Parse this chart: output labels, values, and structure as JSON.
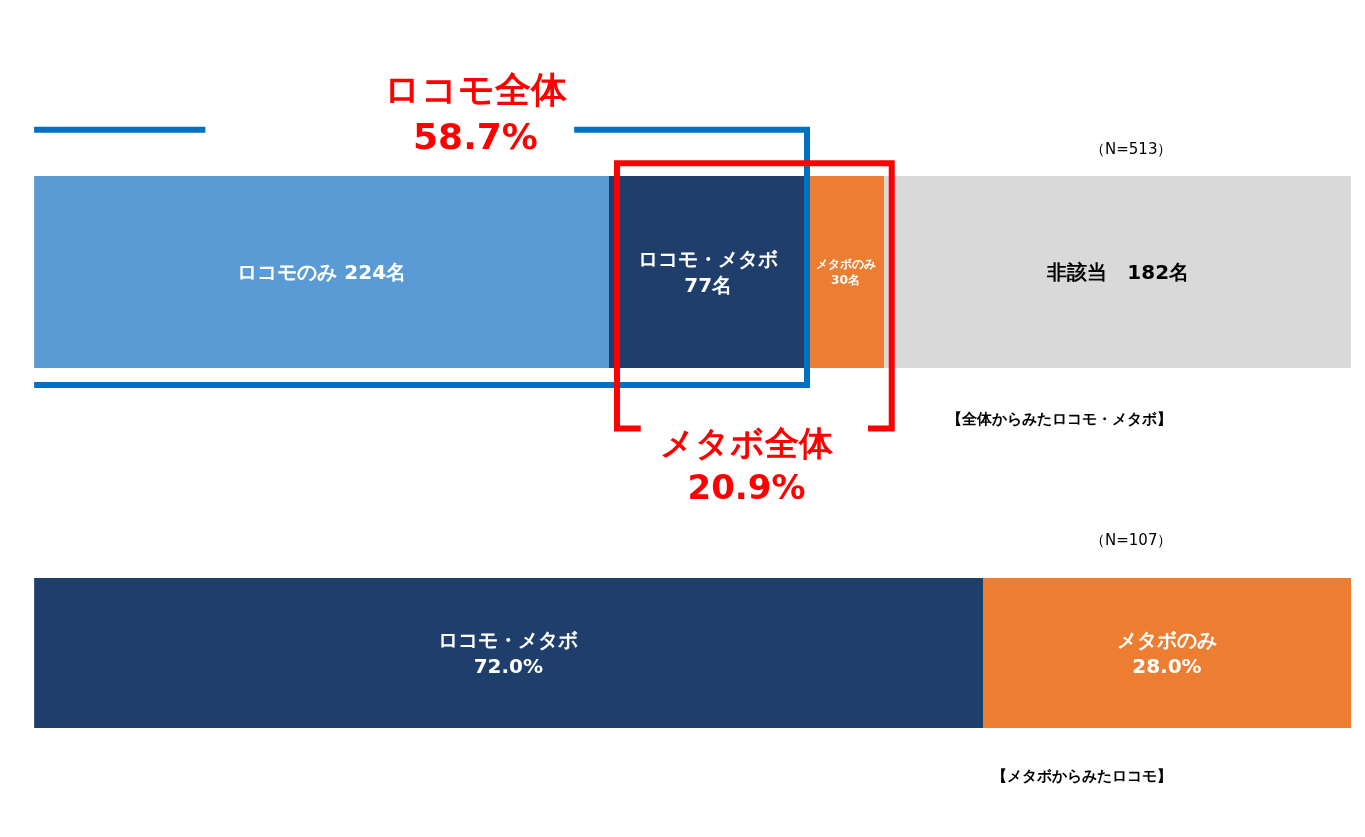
{
  "chart_data": [
    {
      "type": "bar",
      "orientation": "horizontal",
      "stacked": true,
      "categories": [
        null
      ],
      "legend": false,
      "series": [
        {
          "color": "#5b9bd5",
          "values": [
            224
          ],
          "value_labels": [
            "ロコモのみ 224名"
          ]
        },
        {
          "color": "#1f3e6b",
          "values": [
            77
          ],
          "value_labels": [
            "ロコモ・メタボ\n77名"
          ]
        },
        {
          "color": "#ed7d31",
          "values": [
            30
          ],
          "value_labels": [
            "メタボのみ\n30名"
          ]
        },
        {
          "color": "#d9d9d9",
          "values": [
            182
          ],
          "value_labels": [
            "非該当　182名"
          ]
        }
      ],
      "annotations": [
        "（N=513）",
        "【全体からみたロコモ・メタボ】",
        "ロコモ全体\n58.7%",
        "メタボ全体\n20.9%"
      ]
    },
    {
      "type": "bar",
      "orientation": "horizontal",
      "stacked": true,
      "categories": [
        null
      ],
      "legend": false,
      "series": [
        {
          "color": "#1f3e6b",
          "values": [
            72.0
          ],
          "value_labels": [
            "ロコモ・メタボ\n72.0%"
          ]
        },
        {
          "color": "#ed7d31",
          "values": [
            28.0
          ],
          "value_labels": [
            "メタボのみ\n28.0%"
          ]
        }
      ],
      "annotations": [
        "（N=107）",
        "【メタボからみたロコモ】"
      ]
    }
  ]
}
